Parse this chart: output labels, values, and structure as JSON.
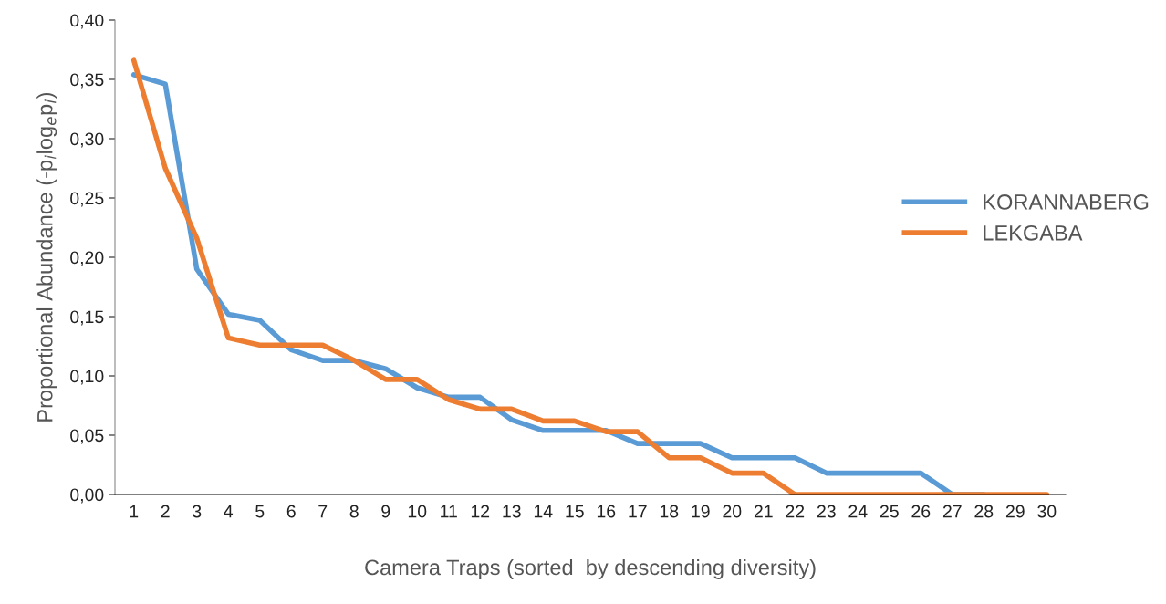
{
  "chart_data": {
    "type": "line",
    "xlabel": "Camera Traps (sorted  by descending diversity)",
    "ylabel": "Proportional Abundance (-p$_{i}$log$_{e}$p$_{i}$)",
    "categories": [
      "1",
      "2",
      "3",
      "4",
      "5",
      "6",
      "7",
      "8",
      "9",
      "10",
      "11",
      "12",
      "13",
      "14",
      "15",
      "16",
      "17",
      "18",
      "19",
      "20",
      "21",
      "22",
      "23",
      "24",
      "25",
      "26",
      "27",
      "28",
      "29",
      "30"
    ],
    "series": [
      {
        "name": "KORANNABERG",
        "color": "#5b9bd5",
        "values": [
          0.354,
          0.346,
          0.19,
          0.152,
          0.147,
          0.122,
          0.113,
          0.113,
          0.106,
          0.09,
          0.082,
          0.082,
          0.063,
          0.054,
          0.054,
          0.054,
          0.043,
          0.043,
          0.043,
          0.031,
          0.031,
          0.031,
          0.018,
          0.018,
          0.018,
          0.018,
          0,
          0,
          null,
          null
        ]
      },
      {
        "name": "LEKGABA",
        "color": "#ed7d31",
        "values": [
          0.366,
          0.275,
          0.216,
          0.132,
          0.126,
          0.126,
          0.126,
          0.113,
          0.097,
          0.097,
          0.08,
          0.072,
          0.072,
          0.062,
          0.062,
          0.053,
          0.053,
          0.031,
          0.031,
          0.018,
          0.018,
          0,
          0,
          0,
          0,
          0,
          0,
          0,
          0,
          0
        ]
      }
    ],
    "ylim": [
      0,
      0.4
    ],
    "yticks": [
      {
        "value": 0,
        "label": "0,00"
      },
      {
        "value": 0.05,
        "label": "0,05"
      },
      {
        "value": 0.1,
        "label": "0,10"
      },
      {
        "value": 0.15,
        "label": "0,15"
      },
      {
        "value": 0.2,
        "label": "0,20"
      },
      {
        "value": 0.25,
        "label": "0,25"
      },
      {
        "value": 0.3,
        "label": "0,30"
      },
      {
        "value": 0.35,
        "label": "0,35"
      },
      {
        "value": 0.4,
        "label": "0,40"
      }
    ],
    "grid": false,
    "legend": "right",
    "marker": "none",
    "line_style": "solid"
  }
}
